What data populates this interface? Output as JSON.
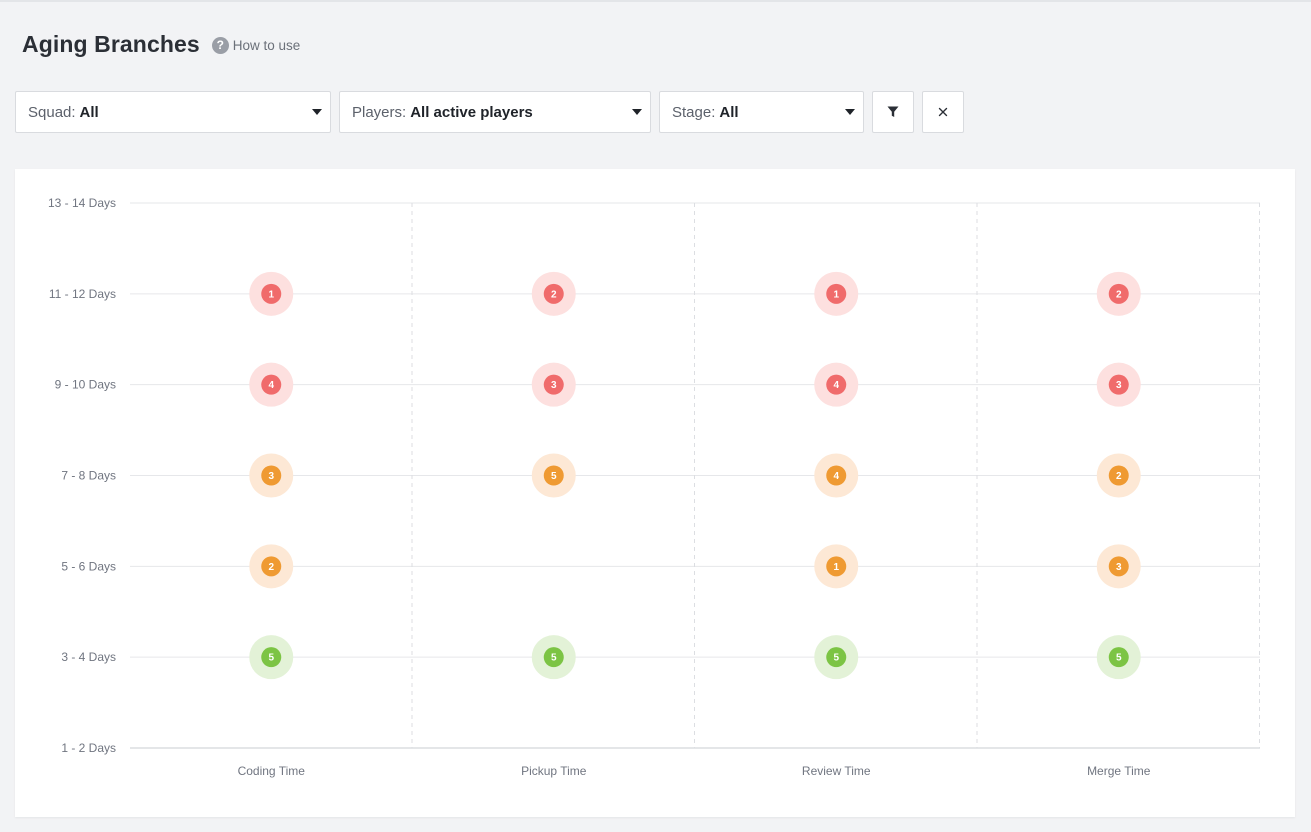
{
  "header": {
    "title": "Aging Branches",
    "help_label": "How to use",
    "help_icon": "question-circle-icon"
  },
  "filters": {
    "squad": {
      "label": "Squad:",
      "value": "All"
    },
    "players": {
      "label": "Players:",
      "value": "All active players"
    },
    "stage": {
      "label": "Stage:",
      "value": "All"
    },
    "filter_icon": "funnel-icon",
    "clear_icon": "close-icon"
  },
  "colors": {
    "red": "#f06b6b",
    "red_halo": "#fde0df",
    "orange": "#ef9a32",
    "orange_halo": "#fde8d5",
    "green": "#7cc444",
    "green_halo": "#e3f2d7"
  },
  "chart_data": {
    "type": "scatter",
    "categories": [
      "Coding Time",
      "Pickup Time",
      "Review Time",
      "Merge Time"
    ],
    "y_ticks": [
      "13 - 14 Days",
      "11 - 12 Days",
      "9 - 10 Days",
      "7 - 8 Days",
      "5 - 6 Days",
      "3 - 4 Days",
      "1 - 2 Days"
    ],
    "grid": true,
    "points": [
      {
        "x": "Coding Time",
        "y": "11 - 12 Days",
        "count": 1,
        "color": "red"
      },
      {
        "x": "Coding Time",
        "y": "9 - 10 Days",
        "count": 4,
        "color": "red"
      },
      {
        "x": "Coding Time",
        "y": "7 - 8 Days",
        "count": 3,
        "color": "orange"
      },
      {
        "x": "Coding Time",
        "y": "5 - 6 Days",
        "count": 2,
        "color": "orange"
      },
      {
        "x": "Coding Time",
        "y": "3 - 4 Days",
        "count": 5,
        "color": "green"
      },
      {
        "x": "Pickup Time",
        "y": "11 - 12 Days",
        "count": 2,
        "color": "red"
      },
      {
        "x": "Pickup Time",
        "y": "9 - 10 Days",
        "count": 3,
        "color": "red"
      },
      {
        "x": "Pickup Time",
        "y": "7 - 8 Days",
        "count": 5,
        "color": "orange"
      },
      {
        "x": "Pickup Time",
        "y": "3 - 4 Days",
        "count": 5,
        "color": "green"
      },
      {
        "x": "Review Time",
        "y": "11 - 12 Days",
        "count": 1,
        "color": "red"
      },
      {
        "x": "Review Time",
        "y": "9 - 10 Days",
        "count": 4,
        "color": "red"
      },
      {
        "x": "Review Time",
        "y": "7 - 8 Days",
        "count": 4,
        "color": "orange"
      },
      {
        "x": "Review Time",
        "y": "5 - 6 Days",
        "count": 1,
        "color": "orange"
      },
      {
        "x": "Review Time",
        "y": "3 - 4 Days",
        "count": 5,
        "color": "green"
      },
      {
        "x": "Merge Time",
        "y": "11 - 12 Days",
        "count": 2,
        "color": "red"
      },
      {
        "x": "Merge Time",
        "y": "9 - 10 Days",
        "count": 3,
        "color": "red"
      },
      {
        "x": "Merge Time",
        "y": "7 - 8 Days",
        "count": 2,
        "color": "orange"
      },
      {
        "x": "Merge Time",
        "y": "5 - 6 Days",
        "count": 3,
        "color": "orange"
      },
      {
        "x": "Merge Time",
        "y": "3 - 4 Days",
        "count": 5,
        "color": "green"
      }
    ]
  }
}
